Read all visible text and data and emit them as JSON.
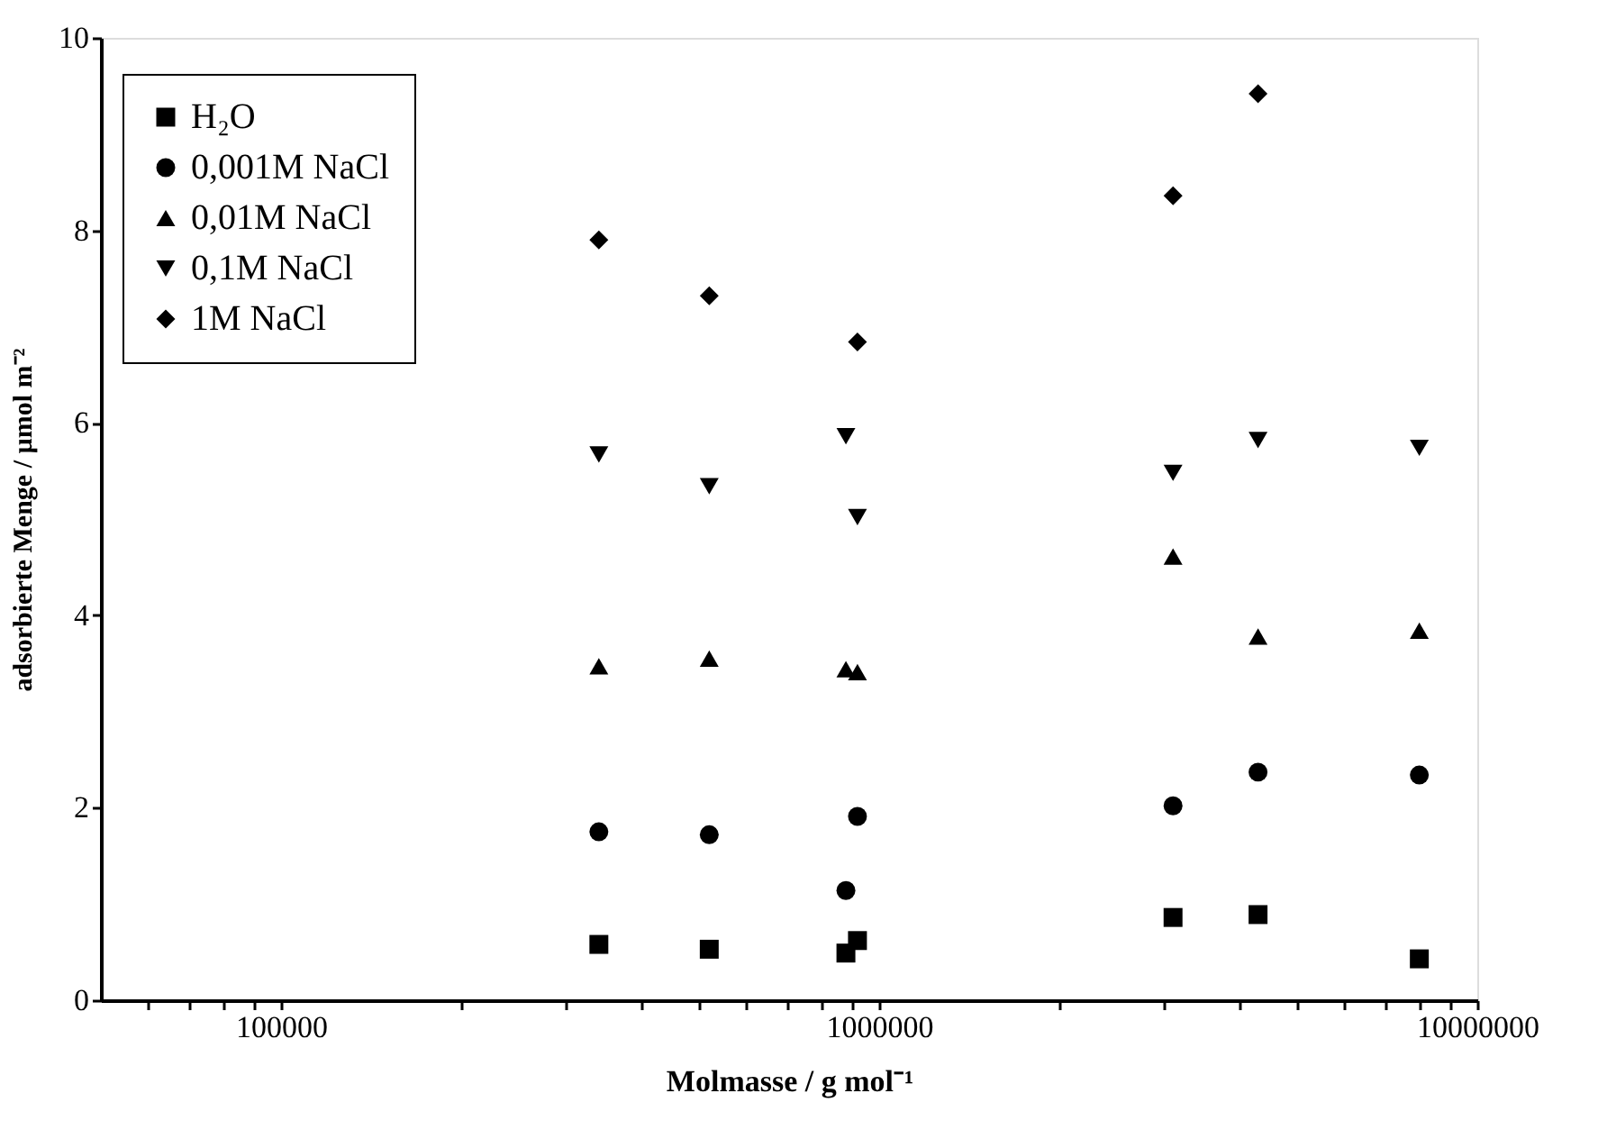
{
  "chart_data": {
    "type": "scatter",
    "xlabel": "Molmasse / g mol⁻¹",
    "ylabel": "adsorbierte Menge / µmol m⁻²",
    "x": [
      340000,
      520000,
      880000,
      920000,
      3100000,
      4300000,
      8000000
    ],
    "log": "x",
    "xlim": [
      50000,
      10000000
    ],
    "xticks": [
      {
        "value": 60000,
        "label": null
      },
      {
        "value": 70000,
        "label": null
      },
      {
        "value": 80000,
        "label": null
      },
      {
        "value": 90000,
        "label": null
      },
      100000,
      {
        "value": 200000,
        "label": null
      },
      {
        "value": 300000,
        "label": null
      },
      {
        "value": 400000,
        "label": null
      },
      {
        "value": 500000,
        "label": null
      },
      {
        "value": 600000,
        "label": null
      },
      {
        "value": 700000,
        "label": null
      },
      {
        "value": 800000,
        "label": null
      },
      {
        "value": 900000,
        "label": null
      },
      1000000,
      {
        "value": 2000000,
        "label": null
      },
      {
        "value": 3000000,
        "label": null
      },
      {
        "value": 4000000,
        "label": null
      },
      {
        "value": 5000000,
        "label": null
      },
      {
        "value": 6000000,
        "label": null
      },
      {
        "value": 7000000,
        "label": null
      },
      {
        "value": 8000000,
        "label": null
      },
      {
        "value": 9000000,
        "label": null
      },
      10000000
    ],
    "ylim": [
      0,
      10
    ],
    "yticks": [
      0,
      2,
      4,
      6,
      8,
      10
    ],
    "grid": false,
    "legend": "top left",
    "series": [
      {
        "name": "H₂O",
        "color": "#000000",
        "marker": "square",
        "values": [
          0.58,
          0.53,
          0.49,
          0.62,
          0.86,
          0.89,
          0.43
        ]
      },
      {
        "name": "0,001M NaCl",
        "color": "#000000",
        "marker": "circle",
        "values": [
          1.75,
          1.72,
          1.14,
          1.91,
          2.02,
          2.37,
          2.34
        ]
      },
      {
        "name": "0,01M NaCl",
        "color": "#000000",
        "marker": "triangle",
        "values": [
          3.47,
          3.55,
          3.44,
          3.41,
          4.61,
          3.78,
          3.84
        ]
      },
      {
        "name": "0,1M NaCl",
        "color": "#000000",
        "marker": "triangle-down",
        "values": [
          5.67,
          5.34,
          5.86,
          5.02,
          5.48,
          5.82,
          5.74
        ]
      },
      {
        "name": "1M NaCl",
        "color": "#000000",
        "marker": "diamond",
        "x": [
          340000,
          520000,
          920000,
          3100000,
          4300000
        ],
        "values": [
          7.9,
          7.32,
          6.84,
          8.36,
          9.42
        ]
      }
    ]
  }
}
